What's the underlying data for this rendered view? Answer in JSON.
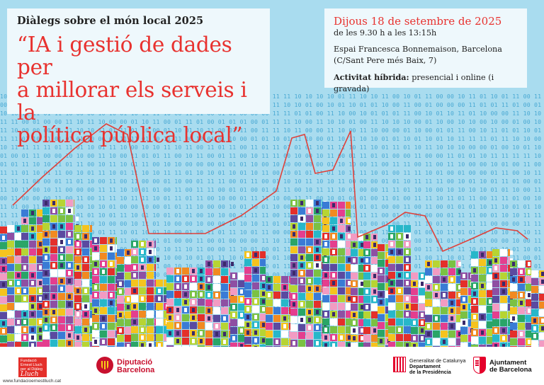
{
  "header": {
    "series": "Diàlegs sobre el món local 2025",
    "title_line1": "“IA i gestió de dades per",
    "title_line2": "a millorar els serveis i la",
    "title_line3": "política pública local”"
  },
  "event": {
    "date": "Dijous 18 de setembre de 2025",
    "time": "de les 9.30 h a les 13:15h",
    "venue": "Espai Francesca Bonnemaison, Barcelona",
    "address": "(C/Sant Pere més Baix, 7)",
    "format_label": "Activitat híbrida:",
    "format_value": "presencial i online (i gravada)"
  },
  "background": {
    "digit_tokens": [
      "01",
      "10",
      "00",
      "11"
    ]
  },
  "footer": {
    "fel_logo_lines": [
      "Fundació",
      "Ernest Lluch",
      "per al Diàleg"
    ],
    "fel_script": "Lluch",
    "fel_url": "www.fundacioernestlluch.cat",
    "diputacio_line1": "Diputació",
    "diputacio_line2": "Barcelona",
    "generalitat_line1": "Generalitat de Catalunya",
    "generalitat_line2": "Departament",
    "generalitat_line3": "de la Presidència",
    "ajuntament_line1": "Ajuntament",
    "ajuntament_line2": "de Barcelona"
  },
  "colors": {
    "sky": "#a9dcef",
    "digits": "#4aa9d3",
    "title_red": "#e8322f",
    "panel": "#eef8fc",
    "chart_line": "#e0413a",
    "tiles": [
      "#7bc143",
      "#e43e8e",
      "#f5c31e",
      "#3a7bd5",
      "#27b7c9",
      "#f18a21",
      "#8e4fa3",
      "#e42f2a",
      "#b7d433",
      "#2aa567",
      "#f29bc2",
      "#5b4aa0",
      "#ffffff"
    ]
  }
}
